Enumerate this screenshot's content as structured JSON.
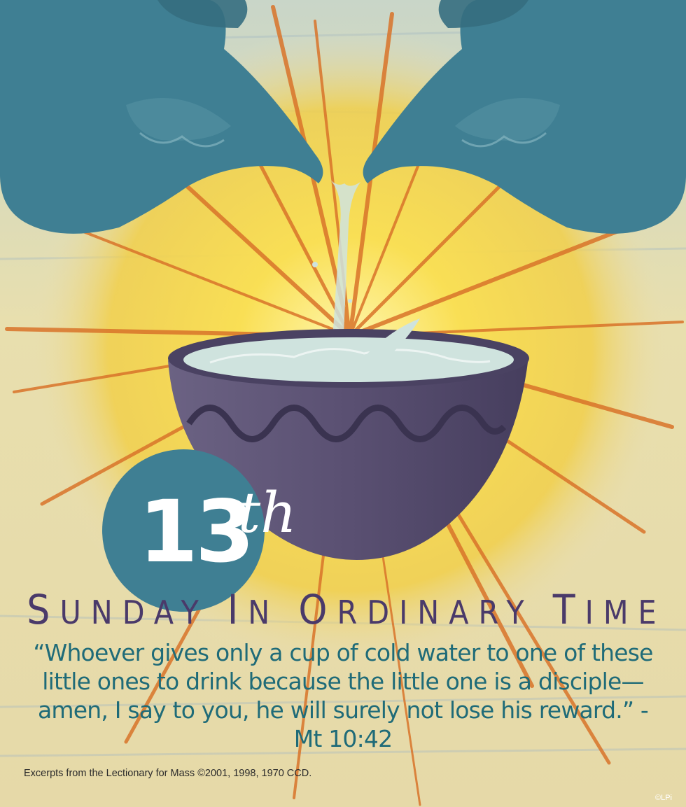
{
  "badge": {
    "number": "13",
    "suffix": "th"
  },
  "title": "Sunday in Ordinary Time",
  "quote": "“Whoever gives only a cup of cold water to one of these little ones to drink because the little one is a disciple—amen, I say to you, he will surely not lose his reward.” - Mt 10:42",
  "credit": "Excerpts from the Lectionary for Mass ©2001, 1998, 1970 CCD.",
  "copyright": "©LPi",
  "colors": {
    "background": "#e9dfb8",
    "sunburst": "#f7d54a",
    "rays": "#d9742a",
    "pitcher": "#3f7f93",
    "bowl": "#5b5274",
    "water": "#cfe3de",
    "badge_circle": "#3f7f93",
    "title_text": "#4a3a6a",
    "quote_text": "#1f6b78"
  }
}
